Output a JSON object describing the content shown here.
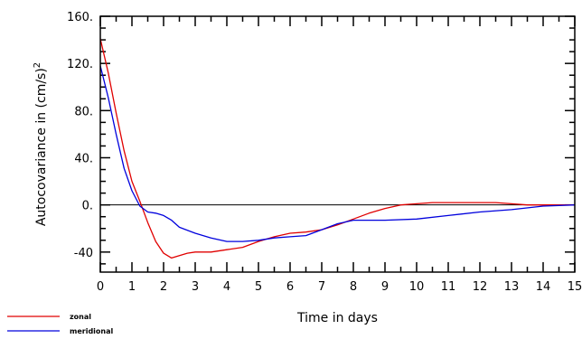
{
  "chart_data": {
    "type": "line",
    "xlabel": "Time in days",
    "ylabel_main": "Autocovariance in (cm/s)",
    "ylabel_sup": "2",
    "xlim": [
      0,
      15
    ],
    "ylim": [
      -57,
      160
    ],
    "x_ticks": [
      0,
      1,
      2,
      3,
      4,
      5,
      6,
      7,
      8,
      9,
      10,
      11,
      12,
      13,
      14,
      15
    ],
    "x_tick_labels": [
      "0",
      "1",
      "2",
      "3",
      "4",
      "5",
      "6",
      "7",
      "8",
      "9",
      "10",
      "11",
      "12",
      "13",
      "14",
      "15"
    ],
    "y_ticks": [
      160,
      120,
      80,
      40,
      0,
      -40
    ],
    "y_tick_labels": [
      "160.",
      "120.",
      "80.",
      "40.",
      "0.",
      "-40"
    ],
    "zero_line": true,
    "grid": false,
    "legend_position": "bottom-left",
    "series": [
      {
        "name": "zonal",
        "color": "#e00000",
        "x": [
          0,
          0.25,
          0.5,
          0.75,
          1.0,
          1.25,
          1.5,
          1.75,
          2.0,
          2.25,
          2.5,
          2.75,
          3.0,
          3.5,
          4.0,
          4.5,
          5.0,
          5.5,
          6.0,
          6.5,
          7.0,
          7.5,
          8.0,
          8.5,
          9.0,
          9.5,
          10.0,
          10.5,
          11.0,
          11.5,
          12.0,
          12.5,
          13.0,
          13.5,
          14.0,
          14.5,
          15.0
        ],
        "y": [
          141,
          112,
          78,
          46,
          20,
          3,
          -15,
          -31,
          -41,
          -45,
          -43,
          -41,
          -40,
          -40,
          -38,
          -36,
          -31,
          -27,
          -24,
          -23,
          -21,
          -17,
          -12,
          -7,
          -3,
          0,
          1,
          2,
          2,
          2,
          2,
          2,
          1,
          0,
          0,
          0,
          0
        ]
      },
      {
        "name": "meridional",
        "color": "#0000dd",
        "x": [
          0,
          0.25,
          0.5,
          0.75,
          1.0,
          1.25,
          1.5,
          1.75,
          2.0,
          2.25,
          2.5,
          3.0,
          3.5,
          4.0,
          4.5,
          5.0,
          5.5,
          6.0,
          6.5,
          7.0,
          7.5,
          8.0,
          9.0,
          10.0,
          11.0,
          12.0,
          13.0,
          14.0,
          15.0
        ],
        "y": [
          118,
          91,
          60,
          31,
          12,
          -1,
          -6,
          -7,
          -9,
          -13,
          -19,
          -24,
          -28,
          -31,
          -31,
          -30,
          -28,
          -27,
          -26,
          -21,
          -16,
          -13,
          -13,
          -12,
          -9,
          -6,
          -4,
          -1,
          0
        ]
      }
    ]
  }
}
